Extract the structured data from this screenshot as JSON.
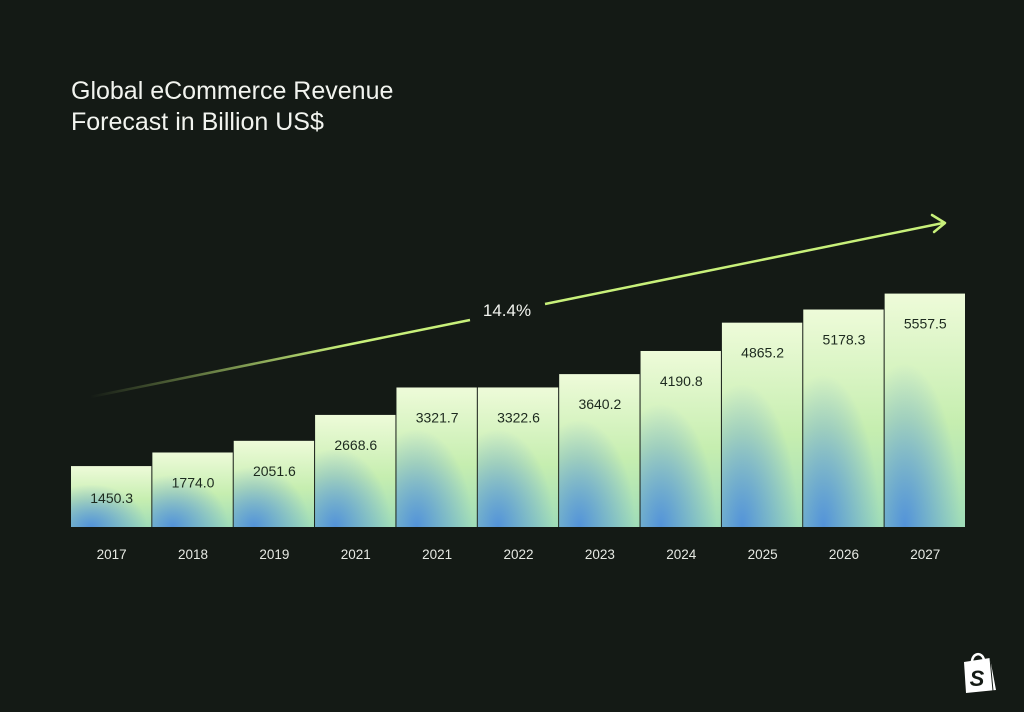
{
  "chart_data": {
    "type": "bar",
    "title_lines": [
      "Global eCommerce Revenue",
      "Forecast in Billion US$"
    ],
    "categories": [
      "2017",
      "2018",
      "2019",
      "2021",
      "2021",
      "2022",
      "2023",
      "2024",
      "2025",
      "2026",
      "2027"
    ],
    "values": [
      1450.3,
      1774.0,
      2051.6,
      2668.6,
      3321.7,
      3322.6,
      3640.2,
      4190.8,
      4865.2,
      5178.3,
      5557.5
    ],
    "value_labels": [
      "1450.3",
      "1774.0",
      "2051.6",
      "2668.6",
      "3321.7",
      "3322.6",
      "3640.2",
      "4190.8",
      "4865.2",
      "5178.3",
      "5557.5"
    ],
    "annotation": "14.4%",
    "xlabel": "",
    "ylabel": "",
    "ylim": [
      0,
      5600
    ],
    "grid": false,
    "colors": {
      "background": "#141a15",
      "bar_top": "#eefbd9",
      "bar_mid": "#bdeca6",
      "bar_bottom": "#4f8fdb",
      "arrow": "#c8f07a",
      "text": "#f2f4ef",
      "bar_text": "#1d2a1f"
    }
  },
  "logo": "shopify-bag-logo"
}
